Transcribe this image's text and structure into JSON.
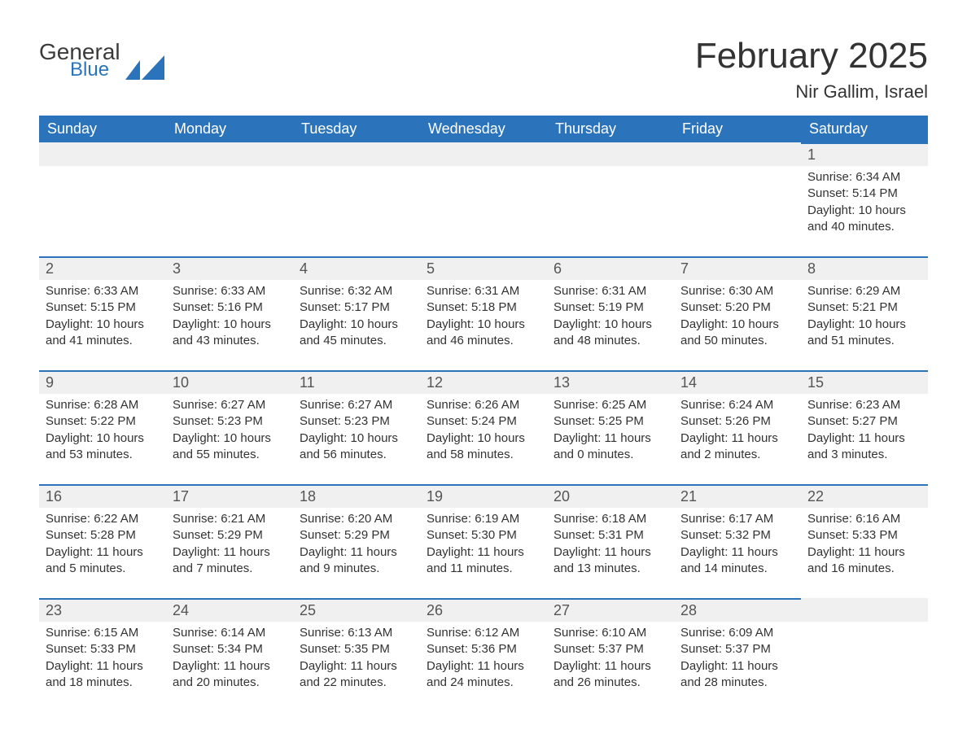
{
  "brand": {
    "line1": "General",
    "line2": "Blue",
    "logo_color": "#2b74bb",
    "text_color_dark": "#3b3b3b"
  },
  "title": {
    "month_year": "February 2025",
    "location": "Nir Gallim, Israel"
  },
  "style": {
    "header_bg": "#2b74bb",
    "header_text": "#ffffff",
    "day_head_bg": "#f0f0f0",
    "day_border_top": "#2b74bb",
    "body_text": "#333333",
    "title_fontsize": 44,
    "location_fontsize": 22,
    "weekday_fontsize": 18,
    "daynum_fontsize": 18,
    "cell_fontsize": 15
  },
  "weekdays": [
    "Sunday",
    "Monday",
    "Tuesday",
    "Wednesday",
    "Thursday",
    "Friday",
    "Saturday"
  ],
  "weeks": [
    [
      null,
      null,
      null,
      null,
      null,
      null,
      {
        "num": "1",
        "sunrise": "Sunrise: 6:34 AM",
        "sunset": "Sunset: 5:14 PM",
        "dl1": "Daylight: 10 hours",
        "dl2": "and 40 minutes."
      }
    ],
    [
      {
        "num": "2",
        "sunrise": "Sunrise: 6:33 AM",
        "sunset": "Sunset: 5:15 PM",
        "dl1": "Daylight: 10 hours",
        "dl2": "and 41 minutes."
      },
      {
        "num": "3",
        "sunrise": "Sunrise: 6:33 AM",
        "sunset": "Sunset: 5:16 PM",
        "dl1": "Daylight: 10 hours",
        "dl2": "and 43 minutes."
      },
      {
        "num": "4",
        "sunrise": "Sunrise: 6:32 AM",
        "sunset": "Sunset: 5:17 PM",
        "dl1": "Daylight: 10 hours",
        "dl2": "and 45 minutes."
      },
      {
        "num": "5",
        "sunrise": "Sunrise: 6:31 AM",
        "sunset": "Sunset: 5:18 PM",
        "dl1": "Daylight: 10 hours",
        "dl2": "and 46 minutes."
      },
      {
        "num": "6",
        "sunrise": "Sunrise: 6:31 AM",
        "sunset": "Sunset: 5:19 PM",
        "dl1": "Daylight: 10 hours",
        "dl2": "and 48 minutes."
      },
      {
        "num": "7",
        "sunrise": "Sunrise: 6:30 AM",
        "sunset": "Sunset: 5:20 PM",
        "dl1": "Daylight: 10 hours",
        "dl2": "and 50 minutes."
      },
      {
        "num": "8",
        "sunrise": "Sunrise: 6:29 AM",
        "sunset": "Sunset: 5:21 PM",
        "dl1": "Daylight: 10 hours",
        "dl2": "and 51 minutes."
      }
    ],
    [
      {
        "num": "9",
        "sunrise": "Sunrise: 6:28 AM",
        "sunset": "Sunset: 5:22 PM",
        "dl1": "Daylight: 10 hours",
        "dl2": "and 53 minutes."
      },
      {
        "num": "10",
        "sunrise": "Sunrise: 6:27 AM",
        "sunset": "Sunset: 5:23 PM",
        "dl1": "Daylight: 10 hours",
        "dl2": "and 55 minutes."
      },
      {
        "num": "11",
        "sunrise": "Sunrise: 6:27 AM",
        "sunset": "Sunset: 5:23 PM",
        "dl1": "Daylight: 10 hours",
        "dl2": "and 56 minutes."
      },
      {
        "num": "12",
        "sunrise": "Sunrise: 6:26 AM",
        "sunset": "Sunset: 5:24 PM",
        "dl1": "Daylight: 10 hours",
        "dl2": "and 58 minutes."
      },
      {
        "num": "13",
        "sunrise": "Sunrise: 6:25 AM",
        "sunset": "Sunset: 5:25 PM",
        "dl1": "Daylight: 11 hours",
        "dl2": "and 0 minutes."
      },
      {
        "num": "14",
        "sunrise": "Sunrise: 6:24 AM",
        "sunset": "Sunset: 5:26 PM",
        "dl1": "Daylight: 11 hours",
        "dl2": "and 2 minutes."
      },
      {
        "num": "15",
        "sunrise": "Sunrise: 6:23 AM",
        "sunset": "Sunset: 5:27 PM",
        "dl1": "Daylight: 11 hours",
        "dl2": "and 3 minutes."
      }
    ],
    [
      {
        "num": "16",
        "sunrise": "Sunrise: 6:22 AM",
        "sunset": "Sunset: 5:28 PM",
        "dl1": "Daylight: 11 hours",
        "dl2": "and 5 minutes."
      },
      {
        "num": "17",
        "sunrise": "Sunrise: 6:21 AM",
        "sunset": "Sunset: 5:29 PM",
        "dl1": "Daylight: 11 hours",
        "dl2": "and 7 minutes."
      },
      {
        "num": "18",
        "sunrise": "Sunrise: 6:20 AM",
        "sunset": "Sunset: 5:29 PM",
        "dl1": "Daylight: 11 hours",
        "dl2": "and 9 minutes."
      },
      {
        "num": "19",
        "sunrise": "Sunrise: 6:19 AM",
        "sunset": "Sunset: 5:30 PM",
        "dl1": "Daylight: 11 hours",
        "dl2": "and 11 minutes."
      },
      {
        "num": "20",
        "sunrise": "Sunrise: 6:18 AM",
        "sunset": "Sunset: 5:31 PM",
        "dl1": "Daylight: 11 hours",
        "dl2": "and 13 minutes."
      },
      {
        "num": "21",
        "sunrise": "Sunrise: 6:17 AM",
        "sunset": "Sunset: 5:32 PM",
        "dl1": "Daylight: 11 hours",
        "dl2": "and 14 minutes."
      },
      {
        "num": "22",
        "sunrise": "Sunrise: 6:16 AM",
        "sunset": "Sunset: 5:33 PM",
        "dl1": "Daylight: 11 hours",
        "dl2": "and 16 minutes."
      }
    ],
    [
      {
        "num": "23",
        "sunrise": "Sunrise: 6:15 AM",
        "sunset": "Sunset: 5:33 PM",
        "dl1": "Daylight: 11 hours",
        "dl2": "and 18 minutes."
      },
      {
        "num": "24",
        "sunrise": "Sunrise: 6:14 AM",
        "sunset": "Sunset: 5:34 PM",
        "dl1": "Daylight: 11 hours",
        "dl2": "and 20 minutes."
      },
      {
        "num": "25",
        "sunrise": "Sunrise: 6:13 AM",
        "sunset": "Sunset: 5:35 PM",
        "dl1": "Daylight: 11 hours",
        "dl2": "and 22 minutes."
      },
      {
        "num": "26",
        "sunrise": "Sunrise: 6:12 AM",
        "sunset": "Sunset: 5:36 PM",
        "dl1": "Daylight: 11 hours",
        "dl2": "and 24 minutes."
      },
      {
        "num": "27",
        "sunrise": "Sunrise: 6:10 AM",
        "sunset": "Sunset: 5:37 PM",
        "dl1": "Daylight: 11 hours",
        "dl2": "and 26 minutes."
      },
      {
        "num": "28",
        "sunrise": "Sunrise: 6:09 AM",
        "sunset": "Sunset: 5:37 PM",
        "dl1": "Daylight: 11 hours",
        "dl2": "and 28 minutes."
      },
      null
    ]
  ]
}
